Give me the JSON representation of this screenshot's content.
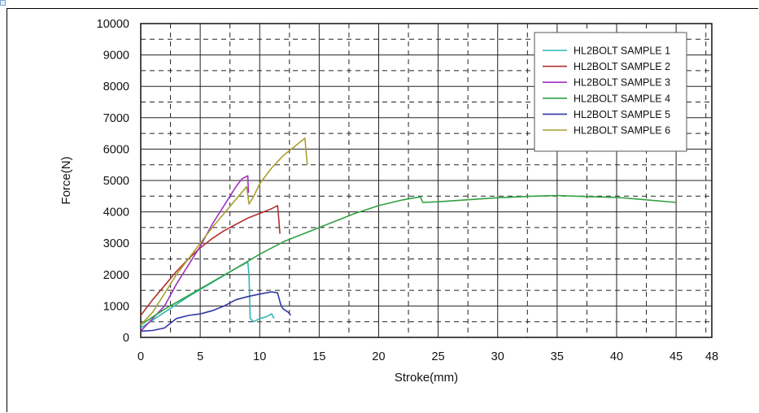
{
  "chart_data": {
    "type": "line",
    "title": "",
    "xlabel": "Stroke(mm)",
    "ylabel": "Force(N)",
    "xlim": [
      0,
      48
    ],
    "ylim": [
      0,
      10000
    ],
    "x_ticks": [
      0,
      5,
      10,
      15,
      20,
      25,
      30,
      35,
      40,
      45,
      48
    ],
    "y_ticks": [
      0,
      1000,
      2000,
      3000,
      4000,
      5000,
      6000,
      7000,
      8000,
      9000,
      10000
    ],
    "grid": true,
    "legend_position": "top-right",
    "series": [
      {
        "name": "HL2BOLT SAMPLE 1",
        "color": "#2fb6b6",
        "points": [
          [
            0,
            300
          ],
          [
            2,
            800
          ],
          [
            4,
            1300
          ],
          [
            6,
            1750
          ],
          [
            8,
            2200
          ],
          [
            9,
            2400
          ],
          [
            9.1,
            2000
          ],
          [
            9.2,
            600
          ],
          [
            9.5,
            500
          ],
          [
            10,
            600
          ],
          [
            10.5,
            650
          ],
          [
            11,
            750
          ],
          [
            11.2,
            600
          ]
        ]
      },
      {
        "name": "HL2BOLT SAMPLE 2",
        "color": "#b03030",
        "points": [
          [
            0,
            700
          ],
          [
            1,
            1200
          ],
          [
            2,
            1650
          ],
          [
            3,
            2100
          ],
          [
            4,
            2500
          ],
          [
            5,
            2850
          ],
          [
            6,
            3150
          ],
          [
            7,
            3400
          ],
          [
            8,
            3600
          ],
          [
            9,
            3800
          ],
          [
            10,
            3950
          ],
          [
            11,
            4100
          ],
          [
            11.5,
            4200
          ],
          [
            11.6,
            3800
          ],
          [
            11.7,
            3300
          ]
        ]
      },
      {
        "name": "HL2BOLT SAMPLE 3",
        "color": "#a030c0",
        "points": [
          [
            0,
            200
          ],
          [
            1,
            600
          ],
          [
            2,
            1000
          ],
          [
            3,
            1700
          ],
          [
            4,
            2300
          ],
          [
            5,
            2900
          ],
          [
            6,
            3600
          ],
          [
            7,
            4200
          ],
          [
            8,
            4800
          ],
          [
            8.5,
            5050
          ],
          [
            9,
            5150
          ],
          [
            9.05,
            4600
          ]
        ]
      },
      {
        "name": "HL2BOLT SAMPLE 4",
        "color": "#30a040",
        "points": [
          [
            0,
            400
          ],
          [
            2,
            900
          ],
          [
            5,
            1550
          ],
          [
            8,
            2200
          ],
          [
            10,
            2650
          ],
          [
            12,
            3050
          ],
          [
            15,
            3500
          ],
          [
            18,
            3950
          ],
          [
            20,
            4200
          ],
          [
            22,
            4380
          ],
          [
            23.5,
            4480
          ],
          [
            23.7,
            4300
          ],
          [
            25,
            4320
          ],
          [
            28,
            4400
          ],
          [
            30,
            4450
          ],
          [
            33,
            4500
          ],
          [
            35,
            4520
          ],
          [
            38,
            4480
          ],
          [
            40,
            4460
          ],
          [
            42,
            4400
          ],
          [
            45,
            4300
          ]
        ]
      },
      {
        "name": "HL2BOLT SAMPLE 5",
        "color": "#3038a0",
        "points": [
          [
            0,
            200
          ],
          [
            1,
            220
          ],
          [
            2,
            300
          ],
          [
            3,
            600
          ],
          [
            4,
            700
          ],
          [
            5,
            750
          ],
          [
            6,
            850
          ],
          [
            7,
            1000
          ],
          [
            8,
            1200
          ],
          [
            9,
            1300
          ],
          [
            10,
            1380
          ],
          [
            11,
            1450
          ],
          [
            11.5,
            1420
          ],
          [
            11.8,
            1000
          ],
          [
            12,
            900
          ],
          [
            12.4,
            800
          ],
          [
            12.6,
            700
          ]
        ]
      },
      {
        "name": "HL2BOLT SAMPLE 6",
        "color": "#a8a030",
        "points": [
          [
            0,
            400
          ],
          [
            1,
            800
          ],
          [
            2,
            1400
          ],
          [
            3,
            2000
          ],
          [
            4,
            2500
          ],
          [
            5,
            3000
          ],
          [
            6,
            3500
          ],
          [
            7,
            3950
          ],
          [
            8,
            4400
          ],
          [
            8.9,
            4800
          ],
          [
            9.1,
            4250
          ],
          [
            9.5,
            4500
          ],
          [
            10,
            4900
          ],
          [
            11,
            5400
          ],
          [
            12,
            5800
          ],
          [
            13,
            6100
          ],
          [
            13.8,
            6350
          ],
          [
            13.9,
            5900
          ],
          [
            14,
            5500
          ]
        ]
      }
    ]
  }
}
